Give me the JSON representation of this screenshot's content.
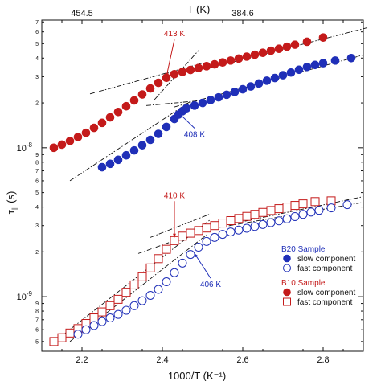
{
  "chart_data": {
    "type": "scatter",
    "xlabel": "1000/T (K⁻¹)",
    "x2label": "T (K)",
    "ylabel": "τ",
    "ylabel_sub": "||",
    "ylabel_unit": " (s)",
    "xlim": [
      2.1,
      2.9
    ],
    "ylim": [
      4.3e-10,
      7.2e-08
    ],
    "yscale": "log",
    "x_ticks": [
      2.2,
      2.4,
      2.6,
      2.8
    ],
    "x2_ticks": [
      {
        "label": "454.5",
        "at": 2.2
      },
      {
        "label": "384.6",
        "at": 2.6
      }
    ],
    "y_major_ticks": [
      {
        "value": 1e-09,
        "base": "10",
        "exp": "-9"
      },
      {
        "value": 1e-08,
        "base": "10",
        "exp": "-8"
      }
    ],
    "y_minor_ticks": [
      {
        "value": 5e-10,
        "label": "5"
      },
      {
        "value": 6e-10,
        "label": "6"
      },
      {
        "value": 7e-10,
        "label": "7"
      },
      {
        "value": 8e-10,
        "label": "8"
      },
      {
        "value": 9e-10,
        "label": "9"
      },
      {
        "value": 2e-09,
        "label": "2"
      },
      {
        "value": 3e-09,
        "label": "3"
      },
      {
        "value": 4e-09,
        "label": "4"
      },
      {
        "value": 5e-09,
        "label": "5"
      },
      {
        "value": 6e-09,
        "label": "6"
      },
      {
        "value": 7e-09,
        "label": "7"
      },
      {
        "value": 8e-09,
        "label": "8"
      },
      {
        "value": 9e-09,
        "label": "9"
      },
      {
        "value": 2e-08,
        "label": "2"
      },
      {
        "value": 3e-08,
        "label": "3"
      },
      {
        "value": 4e-08,
        "label": "4"
      },
      {
        "value": 5e-08,
        "label": "5"
      },
      {
        "value": 6e-08,
        "label": "6"
      },
      {
        "value": 7e-08,
        "label": "7"
      }
    ],
    "colors": {
      "red": "#c41a1a",
      "blue": "#1f2fb8",
      "fit": "#111111"
    },
    "series": [
      {
        "key": "b10_slow",
        "color": "#c41a1a",
        "marker": "filled-circle",
        "points": [
          [
            2.13,
            1e-08
          ],
          [
            2.15,
            1.05e-08
          ],
          [
            2.17,
            1.11e-08
          ],
          [
            2.19,
            1.18e-08
          ],
          [
            2.21,
            1.26e-08
          ],
          [
            2.23,
            1.36e-08
          ],
          [
            2.25,
            1.47e-08
          ],
          [
            2.27,
            1.6e-08
          ],
          [
            2.29,
            1.74e-08
          ],
          [
            2.31,
            1.9e-08
          ],
          [
            2.33,
            2.08e-08
          ],
          [
            2.35,
            2.28e-08
          ],
          [
            2.37,
            2.5e-08
          ],
          [
            2.39,
            2.73e-08
          ],
          [
            2.41,
            2.95e-08
          ],
          [
            2.43,
            3.12e-08
          ],
          [
            2.45,
            3.23e-08
          ],
          [
            2.47,
            3.33e-08
          ],
          [
            2.49,
            3.43e-08
          ],
          [
            2.51,
            3.53e-08
          ],
          [
            2.53,
            3.63e-08
          ],
          [
            2.55,
            3.74e-08
          ],
          [
            2.57,
            3.85e-08
          ],
          [
            2.59,
            3.97e-08
          ],
          [
            2.61,
            4.09e-08
          ],
          [
            2.63,
            4.21e-08
          ],
          [
            2.65,
            4.34e-08
          ],
          [
            2.67,
            4.48e-08
          ],
          [
            2.69,
            4.62e-08
          ],
          [
            2.71,
            4.77e-08
          ],
          [
            2.73,
            4.92e-08
          ],
          [
            2.76,
            5.15e-08
          ],
          [
            2.8,
            5.5e-08
          ]
        ]
      },
      {
        "key": "b20_slow",
        "color": "#1f2fb8",
        "marker": "filled-circle",
        "points": [
          [
            2.25,
            7.4e-09
          ],
          [
            2.27,
            7.8e-09
          ],
          [
            2.29,
            8.3e-09
          ],
          [
            2.31,
            8.9e-09
          ],
          [
            2.33,
            9.6e-09
          ],
          [
            2.35,
            1.04e-08
          ],
          [
            2.37,
            1.13e-08
          ],
          [
            2.39,
            1.24e-08
          ],
          [
            2.41,
            1.38e-08
          ],
          [
            2.43,
            1.56e-08
          ],
          [
            2.44,
            1.67e-08
          ],
          [
            2.45,
            1.76e-08
          ],
          [
            2.46,
            1.84e-08
          ],
          [
            2.48,
            1.92e-08
          ],
          [
            2.5,
            2e-08
          ],
          [
            2.52,
            2.09e-08
          ],
          [
            2.54,
            2.18e-08
          ],
          [
            2.56,
            2.27e-08
          ],
          [
            2.58,
            2.37e-08
          ],
          [
            2.6,
            2.47e-08
          ],
          [
            2.62,
            2.58e-08
          ],
          [
            2.64,
            2.7e-08
          ],
          [
            2.66,
            2.82e-08
          ],
          [
            2.68,
            2.94e-08
          ],
          [
            2.7,
            3.07e-08
          ],
          [
            2.72,
            3.2e-08
          ],
          [
            2.74,
            3.34e-08
          ],
          [
            2.76,
            3.49e-08
          ],
          [
            2.78,
            3.6e-08
          ],
          [
            2.8,
            3.7e-08
          ],
          [
            2.83,
            3.85e-08
          ],
          [
            2.87,
            4e-08
          ]
        ]
      },
      {
        "key": "b10_fast",
        "color": "#c41a1a",
        "marker": "open-square",
        "points": [
          [
            2.13,
            5e-10
          ],
          [
            2.15,
            5.3e-10
          ],
          [
            2.17,
            5.7e-10
          ],
          [
            2.19,
            6.1e-10
          ],
          [
            2.21,
            6.6e-10
          ],
          [
            2.23,
            7.2e-10
          ],
          [
            2.25,
            7.9e-10
          ],
          [
            2.27,
            8.7e-10
          ],
          [
            2.29,
            9.6e-10
          ],
          [
            2.31,
            1.07e-09
          ],
          [
            2.33,
            1.2e-09
          ],
          [
            2.35,
            1.36e-09
          ],
          [
            2.37,
            1.56e-09
          ],
          [
            2.39,
            1.8e-09
          ],
          [
            2.41,
            2.08e-09
          ],
          [
            2.43,
            2.38e-09
          ],
          [
            2.45,
            2.55e-09
          ],
          [
            2.47,
            2.67e-09
          ],
          [
            2.49,
            2.78e-09
          ],
          [
            2.51,
            2.89e-09
          ],
          [
            2.53,
            3e-09
          ],
          [
            2.55,
            3.12e-09
          ],
          [
            2.57,
            3.24e-09
          ],
          [
            2.59,
            3.35e-09
          ],
          [
            2.61,
            3.46e-09
          ],
          [
            2.63,
            3.57e-09
          ],
          [
            2.65,
            3.68e-09
          ],
          [
            2.67,
            3.79e-09
          ],
          [
            2.69,
            3.9e-09
          ],
          [
            2.71,
            4e-09
          ],
          [
            2.73,
            4.1e-09
          ],
          [
            2.75,
            4.2e-09
          ],
          [
            2.78,
            4.35e-09
          ],
          [
            2.82,
            4.4e-09
          ]
        ]
      },
      {
        "key": "b20_fast",
        "color": "#1f2fb8",
        "marker": "open-circle",
        "points": [
          [
            2.19,
            5.6e-10
          ],
          [
            2.21,
            6e-10
          ],
          [
            2.23,
            6.4e-10
          ],
          [
            2.25,
            6.8e-10
          ],
          [
            2.27,
            7.2e-10
          ],
          [
            2.29,
            7.6e-10
          ],
          [
            2.31,
            8.1e-10
          ],
          [
            2.33,
            8.7e-10
          ],
          [
            2.35,
            9.4e-10
          ],
          [
            2.37,
            1.02e-09
          ],
          [
            2.39,
            1.12e-09
          ],
          [
            2.41,
            1.26e-09
          ],
          [
            2.43,
            1.45e-09
          ],
          [
            2.45,
            1.68e-09
          ],
          [
            2.47,
            1.92e-09
          ],
          [
            2.49,
            2.15e-09
          ],
          [
            2.51,
            2.35e-09
          ],
          [
            2.53,
            2.5e-09
          ],
          [
            2.55,
            2.62e-09
          ],
          [
            2.57,
            2.72e-09
          ],
          [
            2.59,
            2.8e-09
          ],
          [
            2.61,
            2.88e-09
          ],
          [
            2.63,
            2.96e-09
          ],
          [
            2.65,
            3.05e-09
          ],
          [
            2.67,
            3.14e-09
          ],
          [
            2.69,
            3.23e-09
          ],
          [
            2.71,
            3.33e-09
          ],
          [
            2.73,
            3.45e-09
          ],
          [
            2.75,
            3.57e-09
          ],
          [
            2.77,
            3.7e-09
          ],
          [
            2.79,
            3.8e-09
          ],
          [
            2.82,
            3.95e-09
          ],
          [
            2.86,
            4.15e-09
          ]
        ]
      }
    ],
    "fit_lines": [
      [
        [
          2.22,
          2.3e-08
        ],
        [
          2.5,
          3.7e-08
        ]
      ],
      [
        [
          2.38,
          2.1e-08
        ],
        [
          2.49,
          4.5e-08
        ]
      ],
      [
        [
          2.36,
          1.92e-08
        ],
        [
          2.5,
          2.08e-08
        ]
      ],
      [
        [
          2.52,
          3.45e-08
        ],
        [
          2.91,
          6.4e-08
        ]
      ],
      [
        [
          2.17,
          6e-09
        ],
        [
          2.47,
          2.05e-08
        ]
      ],
      [
        [
          2.43,
          1.88e-08
        ],
        [
          2.9,
          4.2e-08
        ]
      ],
      [
        [
          2.34,
          1.95e-09
        ],
        [
          2.52,
          2.9e-09
        ]
      ],
      [
        [
          2.37,
          2.5e-09
        ],
        [
          2.52,
          3.6e-09
        ]
      ],
      [
        [
          2.14,
          5.2e-10
        ],
        [
          2.52,
          3.3e-09
        ]
      ],
      [
        [
          2.17,
          5e-10
        ],
        [
          2.51,
          2.6e-09
        ]
      ],
      [
        [
          2.47,
          2.7e-09
        ],
        [
          2.9,
          4.7e-09
        ]
      ],
      [
        [
          2.52,
          2.85e-09
        ],
        [
          2.9,
          4.3e-09
        ]
      ]
    ],
    "annotations": [
      {
        "text": "413 K",
        "color": "#c41a1a",
        "at": [
          2.43,
          5.6e-08
        ],
        "arrow_to": [
          2.41,
          3e-08
        ]
      },
      {
        "text": "408 K",
        "color": "#1f2fb8",
        "at": [
          2.48,
          1.18e-08
        ],
        "arrow_to": [
          2.44,
          1.72e-08
        ]
      },
      {
        "text": "410 K",
        "color": "#c41a1a",
        "at": [
          2.43,
          4.6e-09
        ],
        "arrow_to": [
          2.43,
          2.5e-09
        ]
      },
      {
        "text": "406 K",
        "color": "#1f2fb8",
        "at": [
          2.52,
          1.16e-09
        ],
        "arrow_to": [
          2.48,
          1.95e-09
        ]
      }
    ],
    "legend": {
      "placement": "lower-right",
      "groups": [
        {
          "title": "B20 Sample",
          "color": "#1f2fb8",
          "entries": [
            {
              "label": "slow component",
              "marker": "filled-circle",
              "color": "#1f2fb8"
            },
            {
              "label": "fast component",
              "marker": "open-circle",
              "color": "#1f2fb8"
            }
          ]
        },
        {
          "title": "B10 Sample",
          "color": "#c41a1a",
          "entries": [
            {
              "label": "slow component",
              "marker": "filled-circle",
              "color": "#c41a1a"
            },
            {
              "label": "fast component",
              "marker": "open-square",
              "color": "#c41a1a"
            }
          ]
        }
      ]
    }
  }
}
